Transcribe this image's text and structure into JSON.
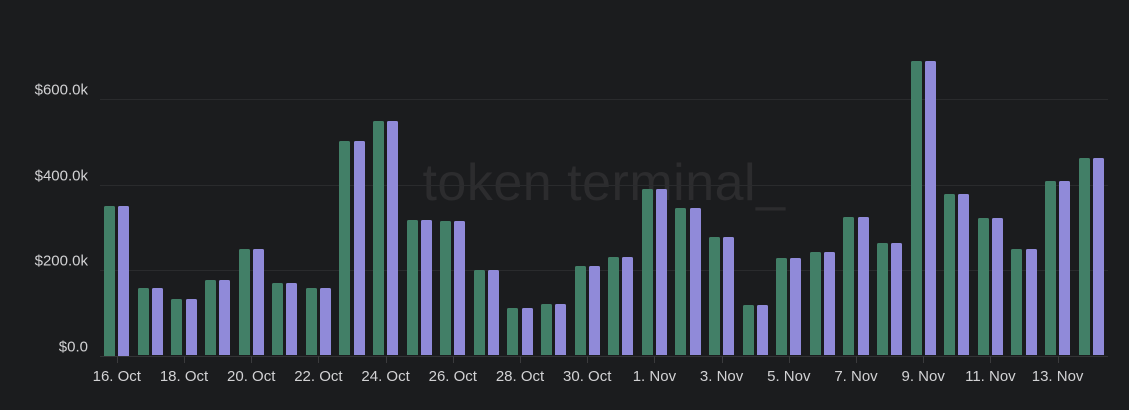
{
  "watermark": "token terminal_",
  "colors": {
    "background": "#1b1c1e",
    "green_series": "#427f67",
    "purple_series": "#908ad9",
    "gridline": "#2a2b2d",
    "axis_line": "#343436",
    "tick": "#3b3b3d",
    "axis_text": "#d2d2d4",
    "watermark_text": "#2c2c2e"
  },
  "chart_data": {
    "type": "bar",
    "title": "",
    "xlabel": "",
    "ylabel": "",
    "unit": "USD",
    "grid": true,
    "legend_visible": false,
    "ylim": [
      0,
      700000
    ],
    "y_tick_values": [
      0,
      200000,
      400000,
      600000
    ],
    "y_tick_labels": [
      "$0.0",
      "$200.0k",
      "$400.0k",
      "$600.0k"
    ],
    "x_tick_labels": [
      "16. Oct",
      "18. Oct",
      "20. Oct",
      "22. Oct",
      "24. Oct",
      "26. Oct",
      "28. Oct",
      "30. Oct",
      "1. Nov",
      "3. Nov",
      "5. Nov",
      "7. Nov",
      "9. Nov",
      "11. Nov",
      "13. Nov"
    ],
    "x_tick_every_n_days": 2,
    "categories": [
      "16. Oct",
      "17. Oct",
      "18. Oct",
      "19. Oct",
      "20. Oct",
      "21. Oct",
      "22. Oct",
      "23. Oct",
      "24. Oct",
      "25. Oct",
      "26. Oct",
      "27. Oct",
      "28. Oct",
      "29. Oct",
      "30. Oct",
      "31. Oct",
      "1. Nov",
      "2. Nov",
      "3. Nov",
      "4. Nov",
      "5. Nov",
      "6. Nov",
      "7. Nov",
      "8. Nov",
      "9. Nov",
      "10. Nov",
      "11. Nov",
      "12. Nov",
      "13. Nov",
      "14. Nov"
    ],
    "series": [
      {
        "name": "green",
        "color": "#427f67",
        "values": [
          350000,
          157000,
          133000,
          177000,
          248000,
          169000,
          157000,
          502000,
          549000,
          317000,
          314000,
          199000,
          112000,
          120000,
          210000,
          230000,
          390000,
          345000,
          277000,
          118000,
          229000,
          241000,
          324000,
          263000,
          688000,
          377000,
          321000,
          248000,
          409000,
          463000
        ]
      },
      {
        "name": "purple",
        "color": "#908ad9",
        "values": [
          350000,
          157000,
          133000,
          177000,
          248000,
          169000,
          157000,
          502000,
          549000,
          317000,
          314000,
          199000,
          112000,
          120000,
          210000,
          230000,
          390000,
          345000,
          277000,
          118000,
          229000,
          241000,
          324000,
          263000,
          688000,
          377000,
          321000,
          248000,
          409000,
          463000
        ]
      }
    ]
  }
}
